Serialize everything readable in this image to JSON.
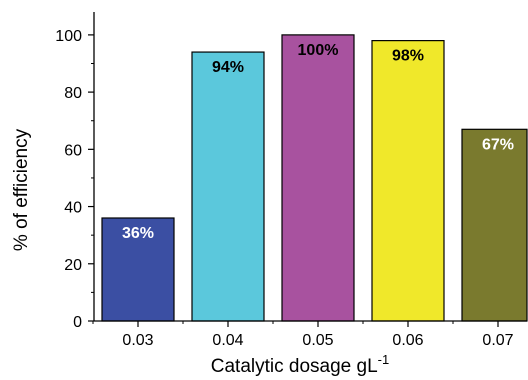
{
  "chart_data": {
    "type": "bar",
    "categories": [
      "0.03",
      "0.04",
      "0.05",
      "0.06",
      "0.07"
    ],
    "values": [
      36,
      94,
      100,
      98,
      67
    ],
    "data_labels": [
      "36%",
      "94%",
      "100%",
      "98%",
      "67%"
    ],
    "colors": [
      "#3b4fa3",
      "#5bc8dc",
      "#a8529f",
      "#f0e82a",
      "#7a7a2e"
    ],
    "label_colors": [
      "#ffffff",
      "#000000",
      "#000000",
      "#000000",
      "#ffffff"
    ],
    "xlabel": "Catalytic dosage gL",
    "xlabel_superscript": "-1",
    "ylabel": "% of efficiency",
    "ylim": [
      0,
      108
    ],
    "yticks": [
      0,
      20,
      40,
      60,
      80,
      100
    ],
    "yticks_minor": [
      10,
      30,
      50,
      70,
      90
    ],
    "grid": false,
    "legend": false
  }
}
